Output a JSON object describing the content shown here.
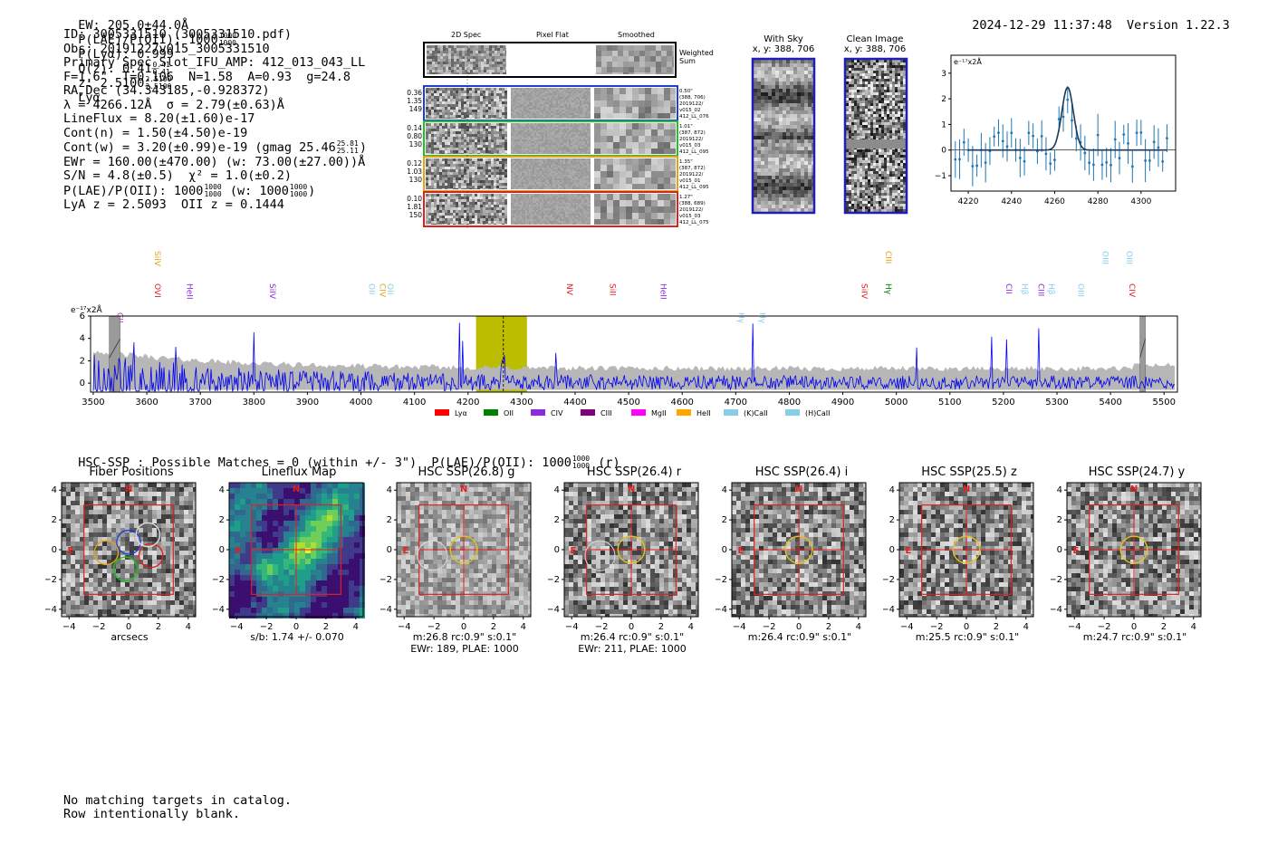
{
  "header": {
    "ew": "EW: 205.0±44.0Å",
    "plae_label": "P(LAE)/P(OII): 1000",
    "plae_sup": "1000",
    "plae_sub": "1000",
    "plya": "P(Lyα): 0.999",
    "qz_label": "Q(z): 0.41",
    "qz_sup": "0.41",
    "qz_sub": "0.41",
    "z_label": "z: 2.5100",
    "z_sup": "2.5100",
    "z_sub": "2.5100",
    "z_line": "Lyα",
    "timestamp": "2024-12-29 11:37:48",
    "version": "Version 1.22.3"
  },
  "info": {
    "l1": "ID: 3005331510 (3005331510.pdf)",
    "l2": "Obs: 20191227v015_3005331510",
    "l3": "Primary Spec_Slot_IFU_AMP: 412_013_043_LL",
    "l4": "F=1.6\"  T=0.106  N=1.58  A=0.93  g=24.8",
    "l5": "RA,Dec (34.343185,-0.928372)",
    "l6": "λ = 4266.12Å  σ = 2.79(±0.63)Å",
    "l7": "LineFlux = 8.20(±1.60)e-17",
    "l8": "Cont(n) = 1.50(±4.50)e-19",
    "l9a": "Cont(w) = 3.20(±0.99)e-19 (gmag 25.46",
    "l9_sup": "25.81",
    "l9_sub": "25.11",
    "l9b": ")",
    "l10": "EWr = 160.00(±470.00) (w: 73.00(±27.00))Å",
    "l11": "S/N = 4.8(±0.5)  χ² = 1.0(±0.2)",
    "l12a": "P(LAE)/P(OII): 1000",
    "l12_sup": "1000",
    "l12_sub": "1000",
    "l12b": "(w: 1000",
    "l12_sup2": "1000",
    "l12_sub2": "1000",
    "l12c": ")",
    "l13": "LyA z = 2.5093  OII z = 0.1444"
  },
  "cutouts": {
    "col_headers": [
      "2D Spec",
      "Pixel Flat",
      "Smoothed"
    ],
    "weighted_sum": "Weighted Sum",
    "rows": [
      {
        "left": [
          "0.36",
          "1.35",
          "149"
        ],
        "right": [
          "0.50\"",
          "(388, 706)",
          "2019122/",
          "v015_02",
          "412_LL_076"
        ],
        "color": "#1f3fd0"
      },
      {
        "left": [
          "0.14",
          "0.80",
          "130"
        ],
        "right": [
          "1.01\"",
          "(387, 872)",
          "2019122/",
          "v015_03",
          "412_LL_095"
        ],
        "color": "#22c022"
      },
      {
        "left": [
          "0.12",
          "1.03",
          "130"
        ],
        "right": [
          "1.35\"",
          "(387, 872)",
          "2019122/",
          "v015_01",
          "412_LL_095"
        ],
        "color": "#e6a11b"
      },
      {
        "left": [
          "0.10",
          "1.81",
          "150"
        ],
        "right": [
          "1.27\"",
          "(388, 689)",
          "2019122/",
          "v015_03",
          "412_LL_075"
        ],
        "color": "#e02020"
      }
    ]
  },
  "sky_panels": {
    "with_sky_title": "With Sky",
    "with_sky_xy": "x, y: 388, 706",
    "clean_title": "Clean Image",
    "clean_xy": "x, y: 388, 706"
  },
  "zoom_plot": {
    "ylabel": "e⁻¹⁷x2Å",
    "x_ticks": [
      "4220",
      "4240",
      "4260",
      "4280",
      "4300"
    ],
    "y_ticks": [
      "3",
      "2",
      "1",
      "0",
      "−1"
    ]
  },
  "chart_data": {
    "type": "line",
    "title": "",
    "ylabel": "e⁻¹⁷x2Å",
    "xlim": [
      3495,
      5525
    ],
    "ylim": [
      -0.8,
      6
    ],
    "x_ticks": [
      "3500",
      "3600",
      "3700",
      "3800",
      "3900",
      "4000",
      "4100",
      "4200",
      "4300",
      "4400",
      "4500",
      "4600",
      "4700",
      "4800",
      "4900",
      "5000",
      "5100",
      "5200",
      "5300",
      "5400",
      "5500"
    ],
    "y_ticks": [
      "6",
      "4",
      "2",
      "0"
    ],
    "highlight_range": [
      4215,
      4310
    ],
    "line_wave": 4266,
    "line_labels": [
      {
        "label": "CII",
        "x": 3540,
        "color": "#cc33cc",
        "row": 2
      },
      {
        "label": "SiIV",
        "x": 3610,
        "color": "#e6a11b",
        "row": 0
      },
      {
        "label": "OVI",
        "x": 3610,
        "color": "#e02020",
        "row": 1
      },
      {
        "label": "HeII",
        "x": 3670,
        "color": "#8a2be2",
        "row": 1
      },
      {
        "label": "SiIV",
        "x": 3825,
        "color": "#8a2be2",
        "row": 1
      },
      {
        "label": "OII",
        "x": 4010,
        "color": "#87ceeb",
        "row": 1
      },
      {
        "label": "CIV",
        "x": 4030,
        "color": "#e6a11b",
        "row": 1
      },
      {
        "label": "OII",
        "x": 4045,
        "color": "#87ceeb",
        "row": 1
      },
      {
        "label": "NV",
        "x": 4380,
        "color": "#e02020",
        "row": 1
      },
      {
        "label": "SiII",
        "x": 4460,
        "color": "#e02020",
        "row": 1
      },
      {
        "label": "HeII",
        "x": 4555,
        "color": "#8a2be2",
        "row": 1
      },
      {
        "label": "Hγ",
        "x": 4700,
        "color": "#87ceeb",
        "row": 2
      },
      {
        "label": "Hγ",
        "x": 4740,
        "color": "#87ceeb",
        "row": 2
      },
      {
        "label": "SiIV",
        "x": 4930,
        "color": "#e02020",
        "row": 1
      },
      {
        "label": "CIII",
        "x": 4975,
        "color": "#e6a11b",
        "row": 0
      },
      {
        "label": "Hγ",
        "x": 4975,
        "color": "#008000",
        "row": 1
      },
      {
        "label": "CII",
        "x": 5200,
        "color": "#8a2be2",
        "row": 1
      },
      {
        "label": "Hβ",
        "x": 5230,
        "color": "#87ceeb",
        "row": 1
      },
      {
        "label": "CIII",
        "x": 5260,
        "color": "#8a2be2",
        "row": 1
      },
      {
        "label": "Hβ",
        "x": 5280,
        "color": "#87ceeb",
        "row": 1
      },
      {
        "label": "OIII",
        "x": 5335,
        "color": "#87ceeb",
        "row": 1
      },
      {
        "label": "OIII",
        "x": 5380,
        "color": "#87ceeb",
        "row": 0
      },
      {
        "label": "OIII",
        "x": 5425,
        "color": "#87ceeb",
        "row": 0
      },
      {
        "label": "CIV",
        "x": 5430,
        "color": "#e02020",
        "row": 1
      }
    ],
    "legend": [
      {
        "label": "Lyα",
        "color": "#ff0000"
      },
      {
        "label": "OII",
        "color": "#008000"
      },
      {
        "label": "CIV",
        "color": "#8a2be2"
      },
      {
        "label": "CIII",
        "color": "#800080"
      },
      {
        "label": "MgII",
        "color": "#ff00ff"
      },
      {
        "label": "HeII",
        "color": "#ffa500"
      },
      {
        "label": "(K)CaII",
        "color": "#87ceeb"
      },
      {
        "label": "(H)CaII",
        "color": "#87ceeb"
      }
    ]
  },
  "hsc": {
    "summary_a": "HSC-SSP : Possible Matches = 0 (within +/- 3\")  P(LAE)/P(OII): 1000",
    "summary_sup": "1000",
    "summary_sub": "1000",
    "summary_b": "(r)",
    "axis_ticks": [
      "4",
      "2",
      "0",
      "−2",
      "−4"
    ],
    "x_axis_ticks": [
      "−4",
      "−2",
      "0",
      "2",
      "4"
    ],
    "compass_n": "N",
    "compass_e": "E",
    "panels": [
      {
        "title": "Fiber Positions",
        "cap1": "arcsecs",
        "cap2": ""
      },
      {
        "title": "Lineflux Map",
        "cap1": "s/b: 1.74 +/- 0.070",
        "cap2": ""
      },
      {
        "title": "HSC SSP(26.8) g",
        "cap1": "m:26.8 rc:0.9\"  s:0.1\"",
        "cap2": "EWr: 189, PLAE: 1000"
      },
      {
        "title": "HSC SSP(26.4) r",
        "cap1": "m:26.4 rc:0.9\"  s:0.1\"",
        "cap2": "EWr: 211, PLAE: 1000"
      },
      {
        "title": "HSC SSP(26.4) i",
        "cap1": "m:26.4 rc:0.9\"  s:0.1\"",
        "cap2": ""
      },
      {
        "title": "HSC SSP(25.5) z",
        "cap1": "m:25.5 rc:0.9\"  s:0.1\"",
        "cap2": ""
      },
      {
        "title": "HSC SSP(24.7) y",
        "cap1": "m:24.7 rc:0.9\"  s:0.1\"",
        "cap2": ""
      }
    ]
  },
  "footer": {
    "line1": "No matching targets in catalog.",
    "line2": "Row intentionally blank."
  }
}
